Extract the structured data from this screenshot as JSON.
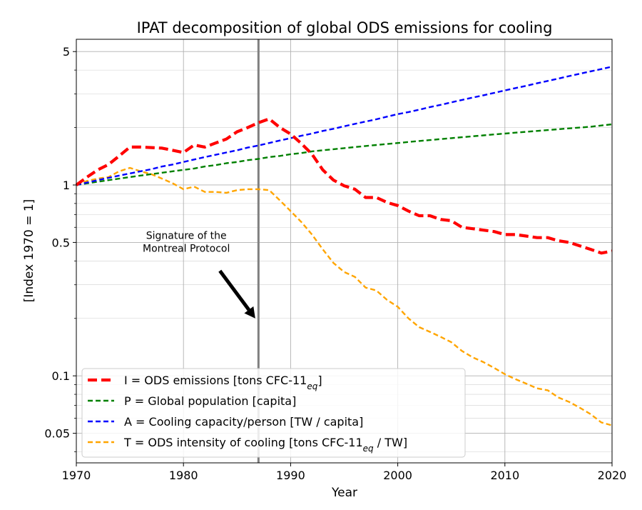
{
  "chart_data": {
    "type": "line",
    "title": "IPAT decomposition of global ODS emissions for cooling",
    "xlabel": "Year",
    "ylabel": "[Index 1970 = 1]",
    "xlim": [
      1970,
      2020
    ],
    "ylim": [
      0.035,
      5.8
    ],
    "yscale": "log",
    "grid": true,
    "legend_position": "lower-left",
    "x_ticks": [
      1970,
      1980,
      1990,
      2000,
      2010,
      2020
    ],
    "y_ticks": [
      {
        "value": 0.05,
        "label": "0.05"
      },
      {
        "value": 0.1,
        "label": "0.1"
      },
      {
        "value": 0.5,
        "label": "0.5"
      },
      {
        "value": 1,
        "label": "1"
      },
      {
        "value": 5,
        "label": "5"
      }
    ],
    "vline": {
      "x": 1987,
      "color": "#808080"
    },
    "annotation": {
      "lines": [
        "Signature of the",
        "Montreal Protocol"
      ],
      "text_at": {
        "x": 1980,
        "y": 0.47
      },
      "arrow_from": {
        "x": 1983.4,
        "y": 0.355
      },
      "arrow_to": {
        "x": 1986.7,
        "y": 0.2
      }
    },
    "x": [
      1970,
      1971,
      1972,
      1973,
      1974,
      1975,
      1976,
      1977,
      1978,
      1979,
      1980,
      1981,
      1982,
      1983,
      1984,
      1985,
      1986,
      1987,
      1988,
      1989,
      1990,
      1991,
      1992,
      1993,
      1994,
      1995,
      1996,
      1997,
      1998,
      1999,
      2000,
      2001,
      2002,
      2003,
      2004,
      2005,
      2006,
      2007,
      2008,
      2009,
      2010,
      2011,
      2012,
      2013,
      2014,
      2015,
      2016,
      2017,
      2018,
      2019,
      2020
    ],
    "series": [
      {
        "name": "I = ODS emissions [tons CFC-11",
        "name_sub": "eq",
        "name_suffix": "]",
        "color": "#ff0000",
        "style": "dashed-thick",
        "values": [
          1.0,
          1.1,
          1.2,
          1.28,
          1.42,
          1.58,
          1.58,
          1.57,
          1.56,
          1.52,
          1.48,
          1.62,
          1.58,
          1.66,
          1.74,
          1.9,
          2.0,
          2.12,
          2.22,
          2.0,
          1.85,
          1.65,
          1.45,
          1.2,
          1.06,
          0.99,
          0.95,
          0.86,
          0.86,
          0.81,
          0.78,
          0.73,
          0.69,
          0.69,
          0.66,
          0.65,
          0.6,
          0.59,
          0.58,
          0.57,
          0.55,
          0.55,
          0.54,
          0.53,
          0.53,
          0.51,
          0.5,
          0.48,
          0.46,
          0.44,
          0.45
        ]
      },
      {
        "name": "P = Global population [capita]",
        "color": "#008000",
        "style": "dashed",
        "values": [
          1.0,
          1.02,
          1.04,
          1.06,
          1.08,
          1.1,
          1.12,
          1.14,
          1.16,
          1.18,
          1.2,
          1.22,
          1.25,
          1.27,
          1.3,
          1.32,
          1.35,
          1.37,
          1.4,
          1.42,
          1.45,
          1.47,
          1.5,
          1.52,
          1.54,
          1.56,
          1.58,
          1.6,
          1.62,
          1.64,
          1.66,
          1.68,
          1.7,
          1.72,
          1.74,
          1.76,
          1.78,
          1.8,
          1.82,
          1.84,
          1.86,
          1.88,
          1.9,
          1.92,
          1.94,
          1.96,
          1.98,
          2.0,
          2.02,
          2.05,
          2.08
        ]
      },
      {
        "name": "A = Cooling capacity/person [TW / capita]",
        "color": "#0000ff",
        "style": "dashed",
        "values": [
          1.0,
          1.03,
          1.06,
          1.09,
          1.12,
          1.15,
          1.18,
          1.21,
          1.25,
          1.28,
          1.32,
          1.36,
          1.4,
          1.44,
          1.48,
          1.52,
          1.57,
          1.61,
          1.66,
          1.71,
          1.76,
          1.81,
          1.86,
          1.92,
          1.97,
          2.03,
          2.09,
          2.15,
          2.21,
          2.28,
          2.35,
          2.41,
          2.48,
          2.56,
          2.63,
          2.71,
          2.79,
          2.87,
          2.95,
          3.04,
          3.13,
          3.22,
          3.31,
          3.41,
          3.51,
          3.61,
          3.72,
          3.83,
          3.94,
          4.05,
          4.17
        ]
      },
      {
        "name": "T = ODS intensity of cooling [tons CFC-11",
        "name_sub": "eq",
        "name_suffix": " / TW]",
        "color": "#ffa500",
        "style": "dashed",
        "values": [
          1.0,
          1.05,
          1.08,
          1.1,
          1.18,
          1.23,
          1.18,
          1.14,
          1.08,
          1.02,
          0.95,
          0.98,
          0.92,
          0.92,
          0.91,
          0.94,
          0.95,
          0.95,
          0.94,
          0.83,
          0.73,
          0.64,
          0.55,
          0.46,
          0.39,
          0.35,
          0.33,
          0.29,
          0.28,
          0.25,
          0.23,
          0.2,
          0.18,
          0.17,
          0.16,
          0.15,
          0.135,
          0.125,
          0.118,
          0.11,
          0.102,
          0.096,
          0.091,
          0.086,
          0.084,
          0.077,
          0.073,
          0.068,
          0.063,
          0.057,
          0.055
        ]
      }
    ]
  }
}
